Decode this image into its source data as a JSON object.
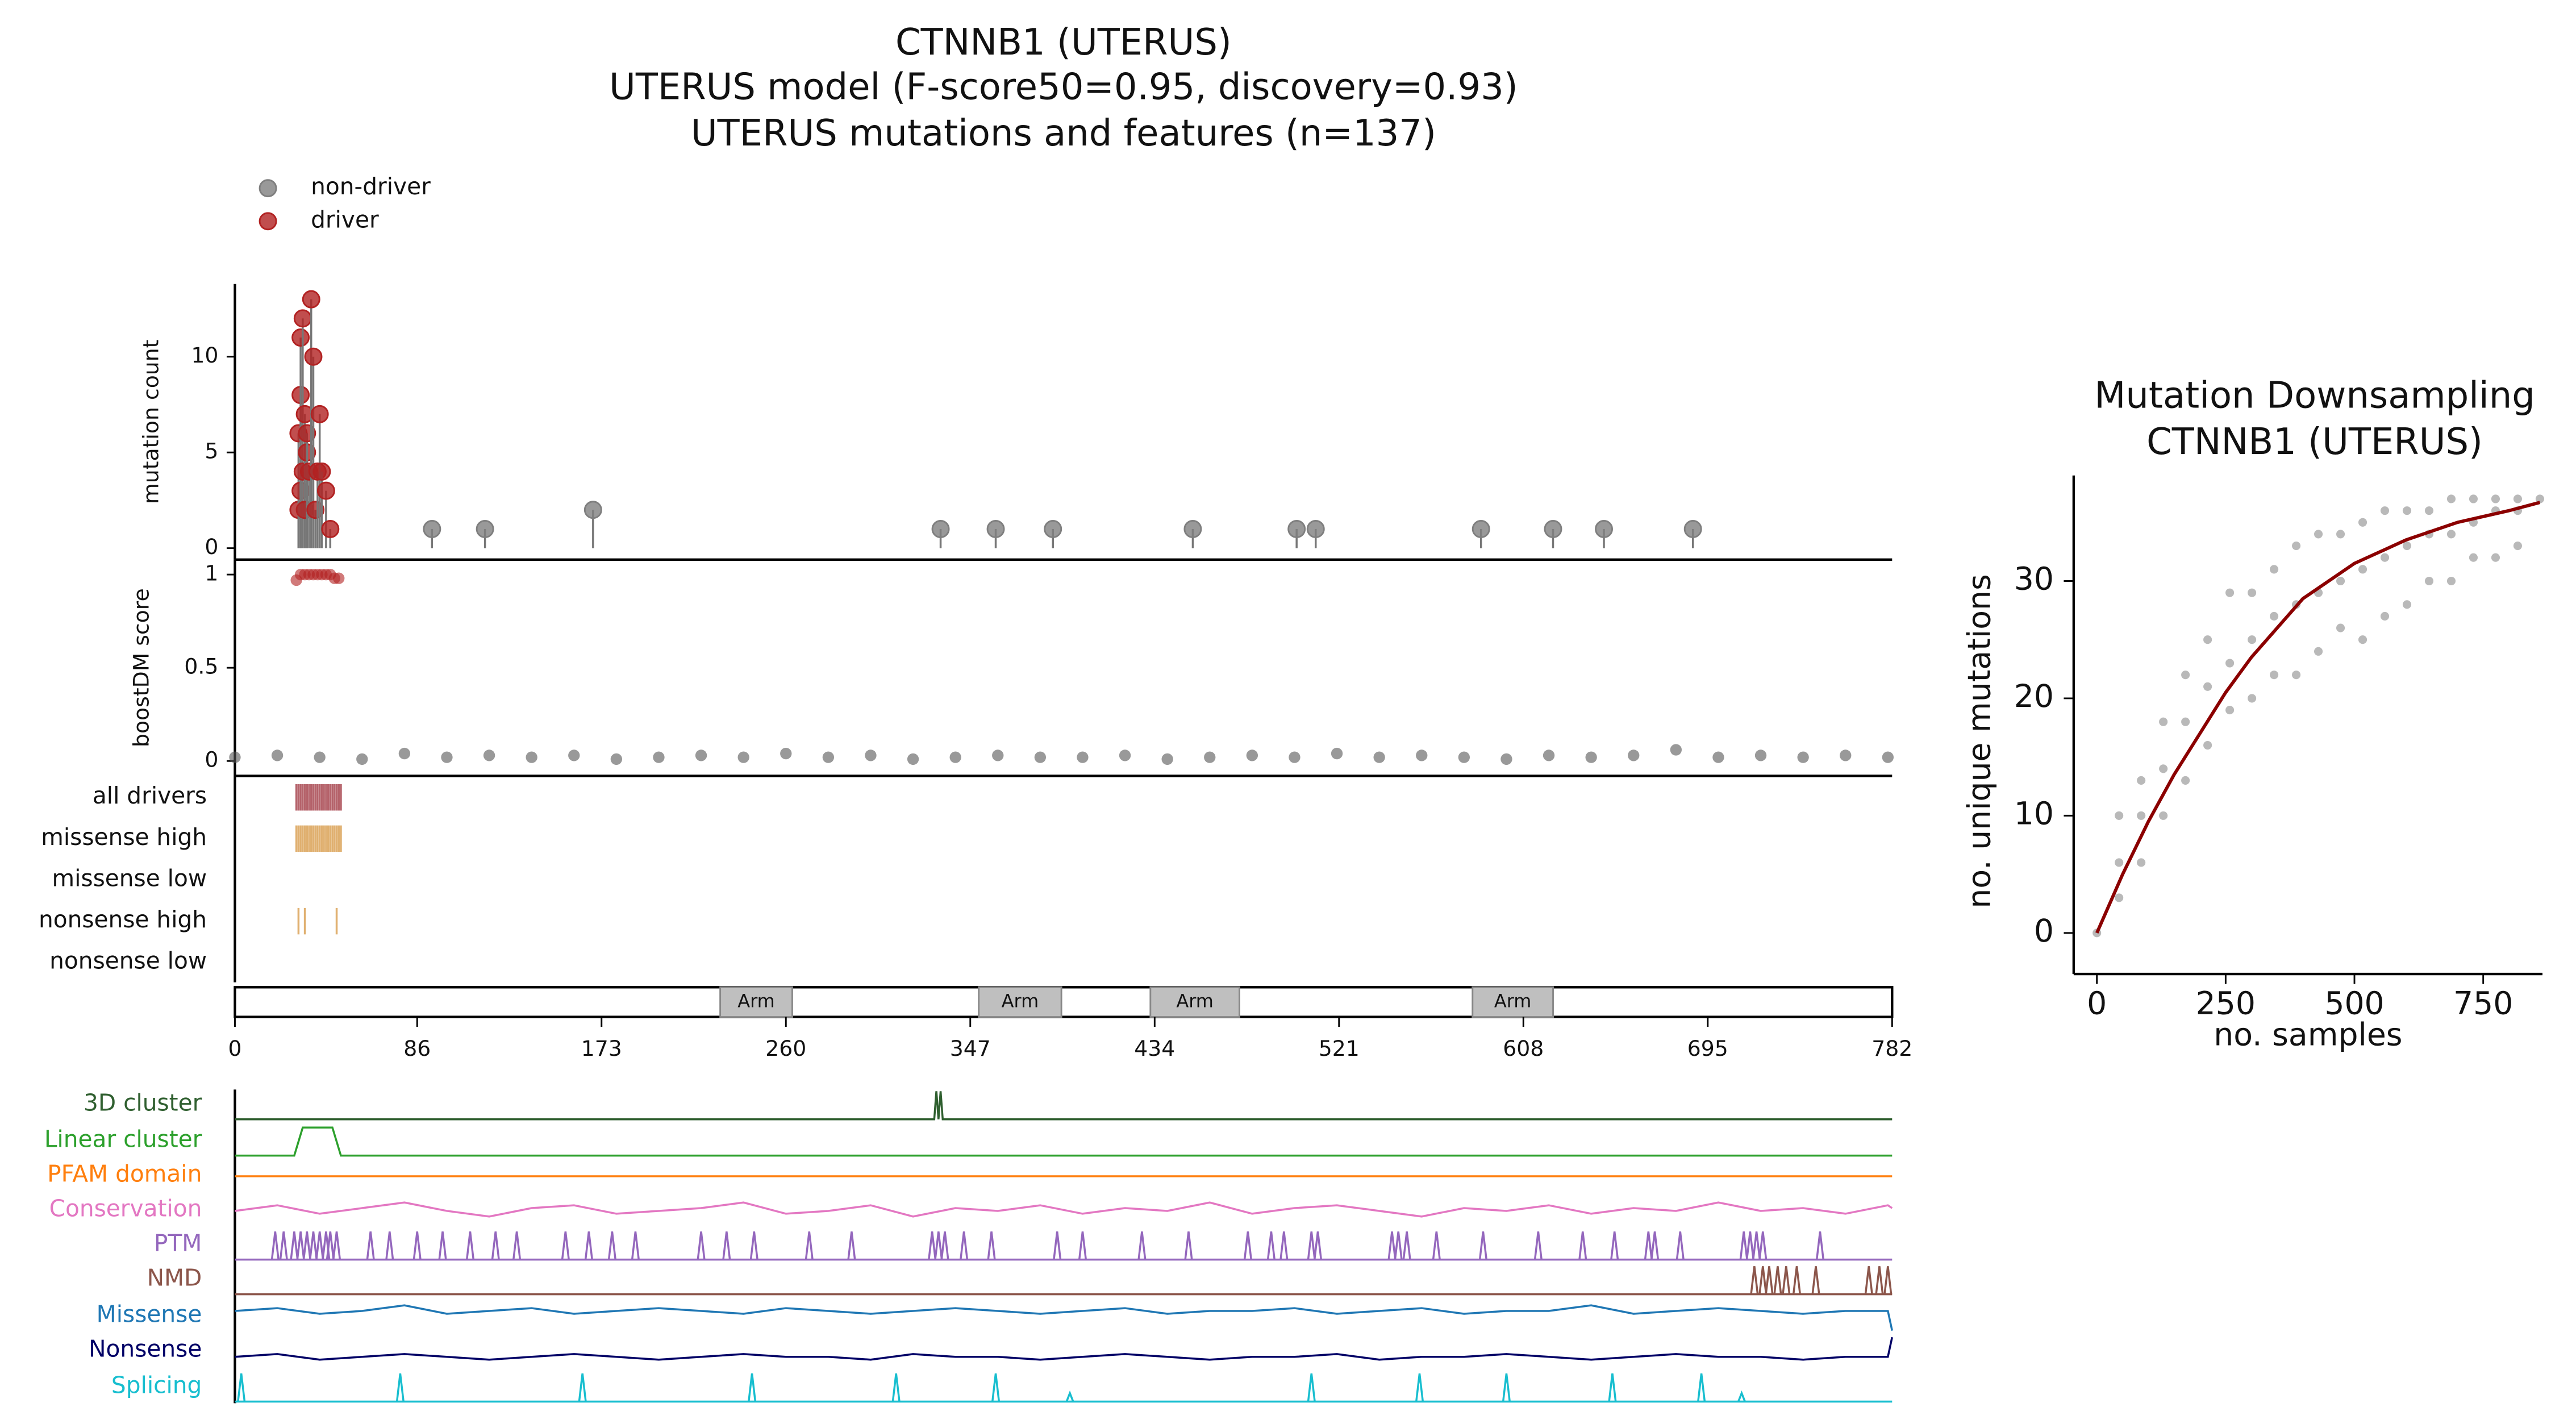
{
  "chart_data": [
    {
      "type": "lollipop",
      "title": [
        "CTNNB1 (UTERUS)",
        "UTERUS model (F-score50=0.95, discovery=0.93)",
        "UTERUS mutations and features (n=137)"
      ],
      "ylabel": "mutation count",
      "ylim": [
        -0.6,
        13.8
      ],
      "yticks": [
        0,
        5,
        10
      ],
      "xlim": [
        0,
        782
      ],
      "xticks": [
        0,
        86,
        173,
        260,
        347,
        434,
        521,
        608,
        695,
        782
      ],
      "series": [
        {
          "name": "non-driver",
          "color": "#7f7f7f",
          "x": [
            93,
            118,
            169,
            333,
            359,
            386,
            452,
            501,
            510,
            588,
            622,
            646,
            688
          ],
          "values": [
            1,
            1,
            2,
            1,
            1,
            1,
            1,
            1,
            1,
            1,
            1,
            1,
            1
          ]
        },
        {
          "name": "driver",
          "color": "#b22222",
          "x": [
            30,
            30,
            31,
            31,
            31,
            32,
            32,
            33,
            33,
            34,
            34,
            35,
            36,
            37,
            38,
            39,
            40,
            41,
            43,
            45
          ],
          "values": [
            2,
            6,
            3,
            8,
            11,
            12,
            4,
            7,
            2,
            5,
            6,
            4,
            13,
            10,
            2,
            4,
            7,
            4,
            3,
            1
          ]
        }
      ]
    },
    {
      "type": "scatter",
      "ylabel": "boostDM score",
      "ylim": [
        -0.08,
        1.08
      ],
      "yticks": [
        0,
        0.5,
        1
      ],
      "series": [
        {
          "color": "#555555",
          "x": [
            0,
            20,
            40,
            60,
            80,
            100,
            120,
            140,
            160,
            180,
            200,
            220,
            240,
            260,
            280,
            300,
            320,
            340,
            360,
            380,
            400,
            420,
            440,
            460,
            480,
            500,
            520,
            540,
            560,
            580,
            600,
            620,
            640,
            660,
            680,
            700,
            720,
            740,
            760,
            780
          ],
          "values": [
            0.02,
            0.03,
            0.02,
            0.01,
            0.04,
            0.02,
            0.03,
            0.02,
            0.03,
            0.01,
            0.02,
            0.03,
            0.02,
            0.04,
            0.02,
            0.03,
            0.01,
            0.02,
            0.03,
            0.02,
            0.02,
            0.03,
            0.01,
            0.02,
            0.03,
            0.02,
            0.04,
            0.02,
            0.03,
            0.02,
            0.01,
            0.03,
            0.02,
            0.03,
            0.06,
            0.02,
            0.03,
            0.02,
            0.03,
            0.02
          ]
        },
        {
          "color": "#b22222",
          "x": [
            29,
            31,
            33,
            35,
            37,
            39,
            41,
            43,
            45,
            47,
            49
          ],
          "values": [
            0.97,
            1,
            1,
            1,
            1,
            1,
            1,
            1,
            1,
            0.98,
            0.98
          ]
        }
      ]
    },
    {
      "type": "tracks",
      "rows": [
        {
          "label": "all drivers",
          "color": "#b5636b",
          "x": [
            29,
            30,
            31,
            32,
            33,
            34,
            35,
            36,
            37,
            38,
            39,
            40,
            41,
            42,
            43,
            44,
            45,
            46,
            47,
            48,
            49,
            50
          ]
        },
        {
          "label": "missense high",
          "color": "#e0b070",
          "x": [
            29,
            30,
            31,
            32,
            33,
            34,
            35,
            36,
            37,
            38,
            39,
            40,
            41,
            42,
            43,
            44,
            45,
            46,
            47,
            48,
            49,
            50
          ]
        },
        {
          "label": "missense low",
          "color": "#e0b070",
          "x": []
        },
        {
          "label": "nonsense high",
          "color": "#e0b070",
          "x": [
            30,
            33,
            48
          ]
        },
        {
          "label": "nonsense low",
          "color": "#e0b070",
          "x": []
        }
      ]
    },
    {
      "type": "domains",
      "color": "#bfbfbf",
      "domains": [
        {
          "label": "Arm",
          "start": 229,
          "end": 263
        },
        {
          "label": "Arm",
          "start": 351,
          "end": 390
        },
        {
          "label": "Arm",
          "start": 432,
          "end": 474
        },
        {
          "label": "Arm",
          "start": 584,
          "end": 622
        }
      ]
    },
    {
      "type": "features",
      "tracks": [
        {
          "name": "3D cluster",
          "color": "#2f5f2f",
          "style": "line",
          "x": [
            0,
            330,
            331,
            332,
            333,
            334,
            782
          ],
          "values": [
            0,
            0,
            1,
            0,
            1,
            0,
            0
          ]
        },
        {
          "name": "Linear cluster",
          "color": "#2ca02c",
          "style": "line",
          "x": [
            0,
            28,
            32,
            46,
            50,
            782
          ],
          "values": [
            0,
            0,
            1,
            1,
            0,
            0
          ]
        },
        {
          "name": "PFAM domain",
          "color": "#ff7f0e",
          "style": "line",
          "x": [
            0,
            782
          ],
          "values": [
            0.5,
            0.5
          ]
        },
        {
          "name": "Conservation",
          "color": "#e377c2",
          "style": "line",
          "x": [
            0,
            20,
            40,
            60,
            80,
            100,
            120,
            140,
            160,
            180,
            200,
            220,
            240,
            260,
            280,
            300,
            320,
            340,
            360,
            380,
            400,
            420,
            440,
            460,
            480,
            500,
            520,
            540,
            560,
            580,
            600,
            620,
            640,
            660,
            680,
            700,
            720,
            740,
            760,
            780,
            782
          ],
          "values": [
            0.5,
            0.7,
            0.4,
            0.6,
            0.8,
            0.5,
            0.3,
            0.6,
            0.7,
            0.4,
            0.5,
            0.6,
            0.8,
            0.4,
            0.5,
            0.7,
            0.3,
            0.6,
            0.5,
            0.7,
            0.4,
            0.6,
            0.5,
            0.8,
            0.4,
            0.6,
            0.7,
            0.5,
            0.3,
            0.6,
            0.5,
            0.7,
            0.4,
            0.6,
            0.5,
            0.8,
            0.5,
            0.6,
            0.4,
            0.7,
            0.6
          ]
        },
        {
          "name": "PTM",
          "color": "#9467bd",
          "style": "spikes",
          "x": [
            19,
            23,
            28,
            31,
            34,
            37,
            40,
            43,
            45,
            48,
            64,
            73,
            86,
            98,
            111,
            123,
            133,
            156,
            167,
            178,
            189,
            220,
            232,
            245,
            271,
            291,
            329,
            332,
            335,
            344,
            357,
            388,
            400,
            428,
            450,
            478,
            489,
            495,
            508,
            511,
            546,
            549,
            553,
            567,
            589,
            615,
            636,
            651,
            667,
            670,
            682,
            712,
            715,
            718,
            721,
            748
          ],
          "values": [
            1,
            1,
            1,
            1,
            1,
            1,
            1,
            1,
            1,
            1,
            1,
            1,
            1,
            1,
            1,
            1,
            1,
            1,
            1,
            1,
            1,
            1,
            1,
            1,
            1,
            1,
            1,
            1,
            1,
            1,
            1,
            1,
            1,
            1,
            1,
            1,
            1,
            1,
            1,
            1,
            1,
            1,
            1,
            1,
            1,
            1,
            1,
            1,
            1,
            1,
            1,
            1,
            1,
            1,
            1,
            1
          ]
        },
        {
          "name": "NMD",
          "color": "#8c564b",
          "style": "spikes",
          "x": [
            717,
            721,
            724,
            728,
            732,
            737,
            746,
            771,
            776,
            780
          ],
          "values": [
            1,
            1,
            1,
            1,
            1,
            1,
            1,
            1,
            1,
            1
          ]
        },
        {
          "name": "Missense",
          "color": "#1f77b4",
          "style": "line",
          "x": [
            0,
            20,
            40,
            60,
            80,
            100,
            120,
            140,
            160,
            180,
            200,
            220,
            240,
            260,
            280,
            300,
            320,
            340,
            360,
            380,
            400,
            420,
            440,
            460,
            480,
            500,
            520,
            540,
            560,
            580,
            600,
            620,
            640,
            660,
            680,
            700,
            720,
            740,
            760,
            780,
            782
          ],
          "values": [
            0.7,
            0.8,
            0.6,
            0.7,
            0.9,
            0.6,
            0.7,
            0.8,
            0.6,
            0.7,
            0.8,
            0.7,
            0.6,
            0.8,
            0.7,
            0.6,
            0.7,
            0.8,
            0.7,
            0.6,
            0.7,
            0.8,
            0.6,
            0.7,
            0.7,
            0.8,
            0.6,
            0.7,
            0.8,
            0.6,
            0.7,
            0.7,
            0.9,
            0.6,
            0.7,
            0.8,
            0.7,
            0.6,
            0.7,
            0.7,
            0
          ]
        },
        {
          "name": "Nonsense",
          "color": "#000066",
          "style": "line",
          "x": [
            0,
            20,
            40,
            60,
            80,
            100,
            120,
            140,
            160,
            180,
            200,
            220,
            240,
            260,
            280,
            300,
            320,
            340,
            360,
            380,
            400,
            420,
            440,
            460,
            480,
            500,
            520,
            540,
            560,
            580,
            600,
            620,
            640,
            660,
            680,
            700,
            720,
            740,
            760,
            780,
            782
          ],
          "values": [
            0.3,
            0.4,
            0.2,
            0.3,
            0.4,
            0.3,
            0.2,
            0.3,
            0.4,
            0.3,
            0.2,
            0.3,
            0.4,
            0.3,
            0.3,
            0.2,
            0.4,
            0.3,
            0.3,
            0.2,
            0.3,
            0.4,
            0.3,
            0.2,
            0.3,
            0.3,
            0.4,
            0.2,
            0.3,
            0.3,
            0.4,
            0.3,
            0.2,
            0.3,
            0.4,
            0.3,
            0.3,
            0.2,
            0.3,
            0.3,
            1
          ]
        },
        {
          "name": "Splicing",
          "color": "#17becf",
          "style": "spikes",
          "x": [
            3,
            78,
            164,
            244,
            312,
            359,
            394,
            508,
            559,
            600,
            650,
            692,
            711
          ],
          "values": [
            1,
            1,
            1,
            1,
            1,
            1,
            0.3,
            1,
            1,
            1,
            1,
            1,
            0.3
          ]
        }
      ]
    },
    {
      "type": "line",
      "title": [
        "Mutation Downsampling",
        "CTNNB1 (UTERUS)"
      ],
      "xlabel": "no. samples",
      "ylabel": "no. unique mutations",
      "xlim": [
        -45,
        865
      ],
      "ylim": [
        -3.5,
        39
      ],
      "xticks": [
        0,
        250,
        500,
        750
      ],
      "yticks": [
        0,
        10,
        20,
        30
      ],
      "scatter": {
        "color": "#808080",
        "x": [
          0,
          43,
          43,
          43,
          86,
          86,
          86,
          129,
          129,
          129,
          172,
          172,
          172,
          215,
          215,
          215,
          258,
          258,
          258,
          301,
          301,
          301,
          344,
          344,
          344,
          387,
          387,
          387,
          430,
          430,
          430,
          473,
          473,
          473,
          516,
          516,
          516,
          559,
          559,
          559,
          602,
          602,
          602,
          645,
          645,
          645,
          688,
          688,
          688,
          731,
          731,
          731,
          774,
          774,
          774,
          817,
          817,
          817,
          860
        ],
        "values": [
          0,
          3,
          6,
          10,
          6,
          10,
          13,
          10,
          14,
          18,
          13,
          18,
          22,
          16,
          21,
          25,
          19,
          23,
          29,
          20,
          25,
          29,
          22,
          27,
          31,
          22,
          28,
          33,
          24,
          29,
          34,
          26,
          30,
          34,
          25,
          31,
          35,
          27,
          32,
          36,
          28,
          33,
          36,
          30,
          34,
          36,
          30,
          34,
          37,
          32,
          35,
          37,
          32,
          36,
          37,
          33,
          36,
          37,
          37
        ]
      },
      "series": [
        {
          "color": "#8b0000",
          "x": [
            0,
            50,
            100,
            150,
            200,
            250,
            300,
            400,
            500,
            600,
            700,
            800,
            860
          ],
          "values": [
            0,
            5,
            9.5,
            13.5,
            17,
            20.5,
            23.5,
            28.5,
            31.5,
            33.5,
            35,
            36,
            36.7
          ]
        }
      ]
    }
  ]
}
